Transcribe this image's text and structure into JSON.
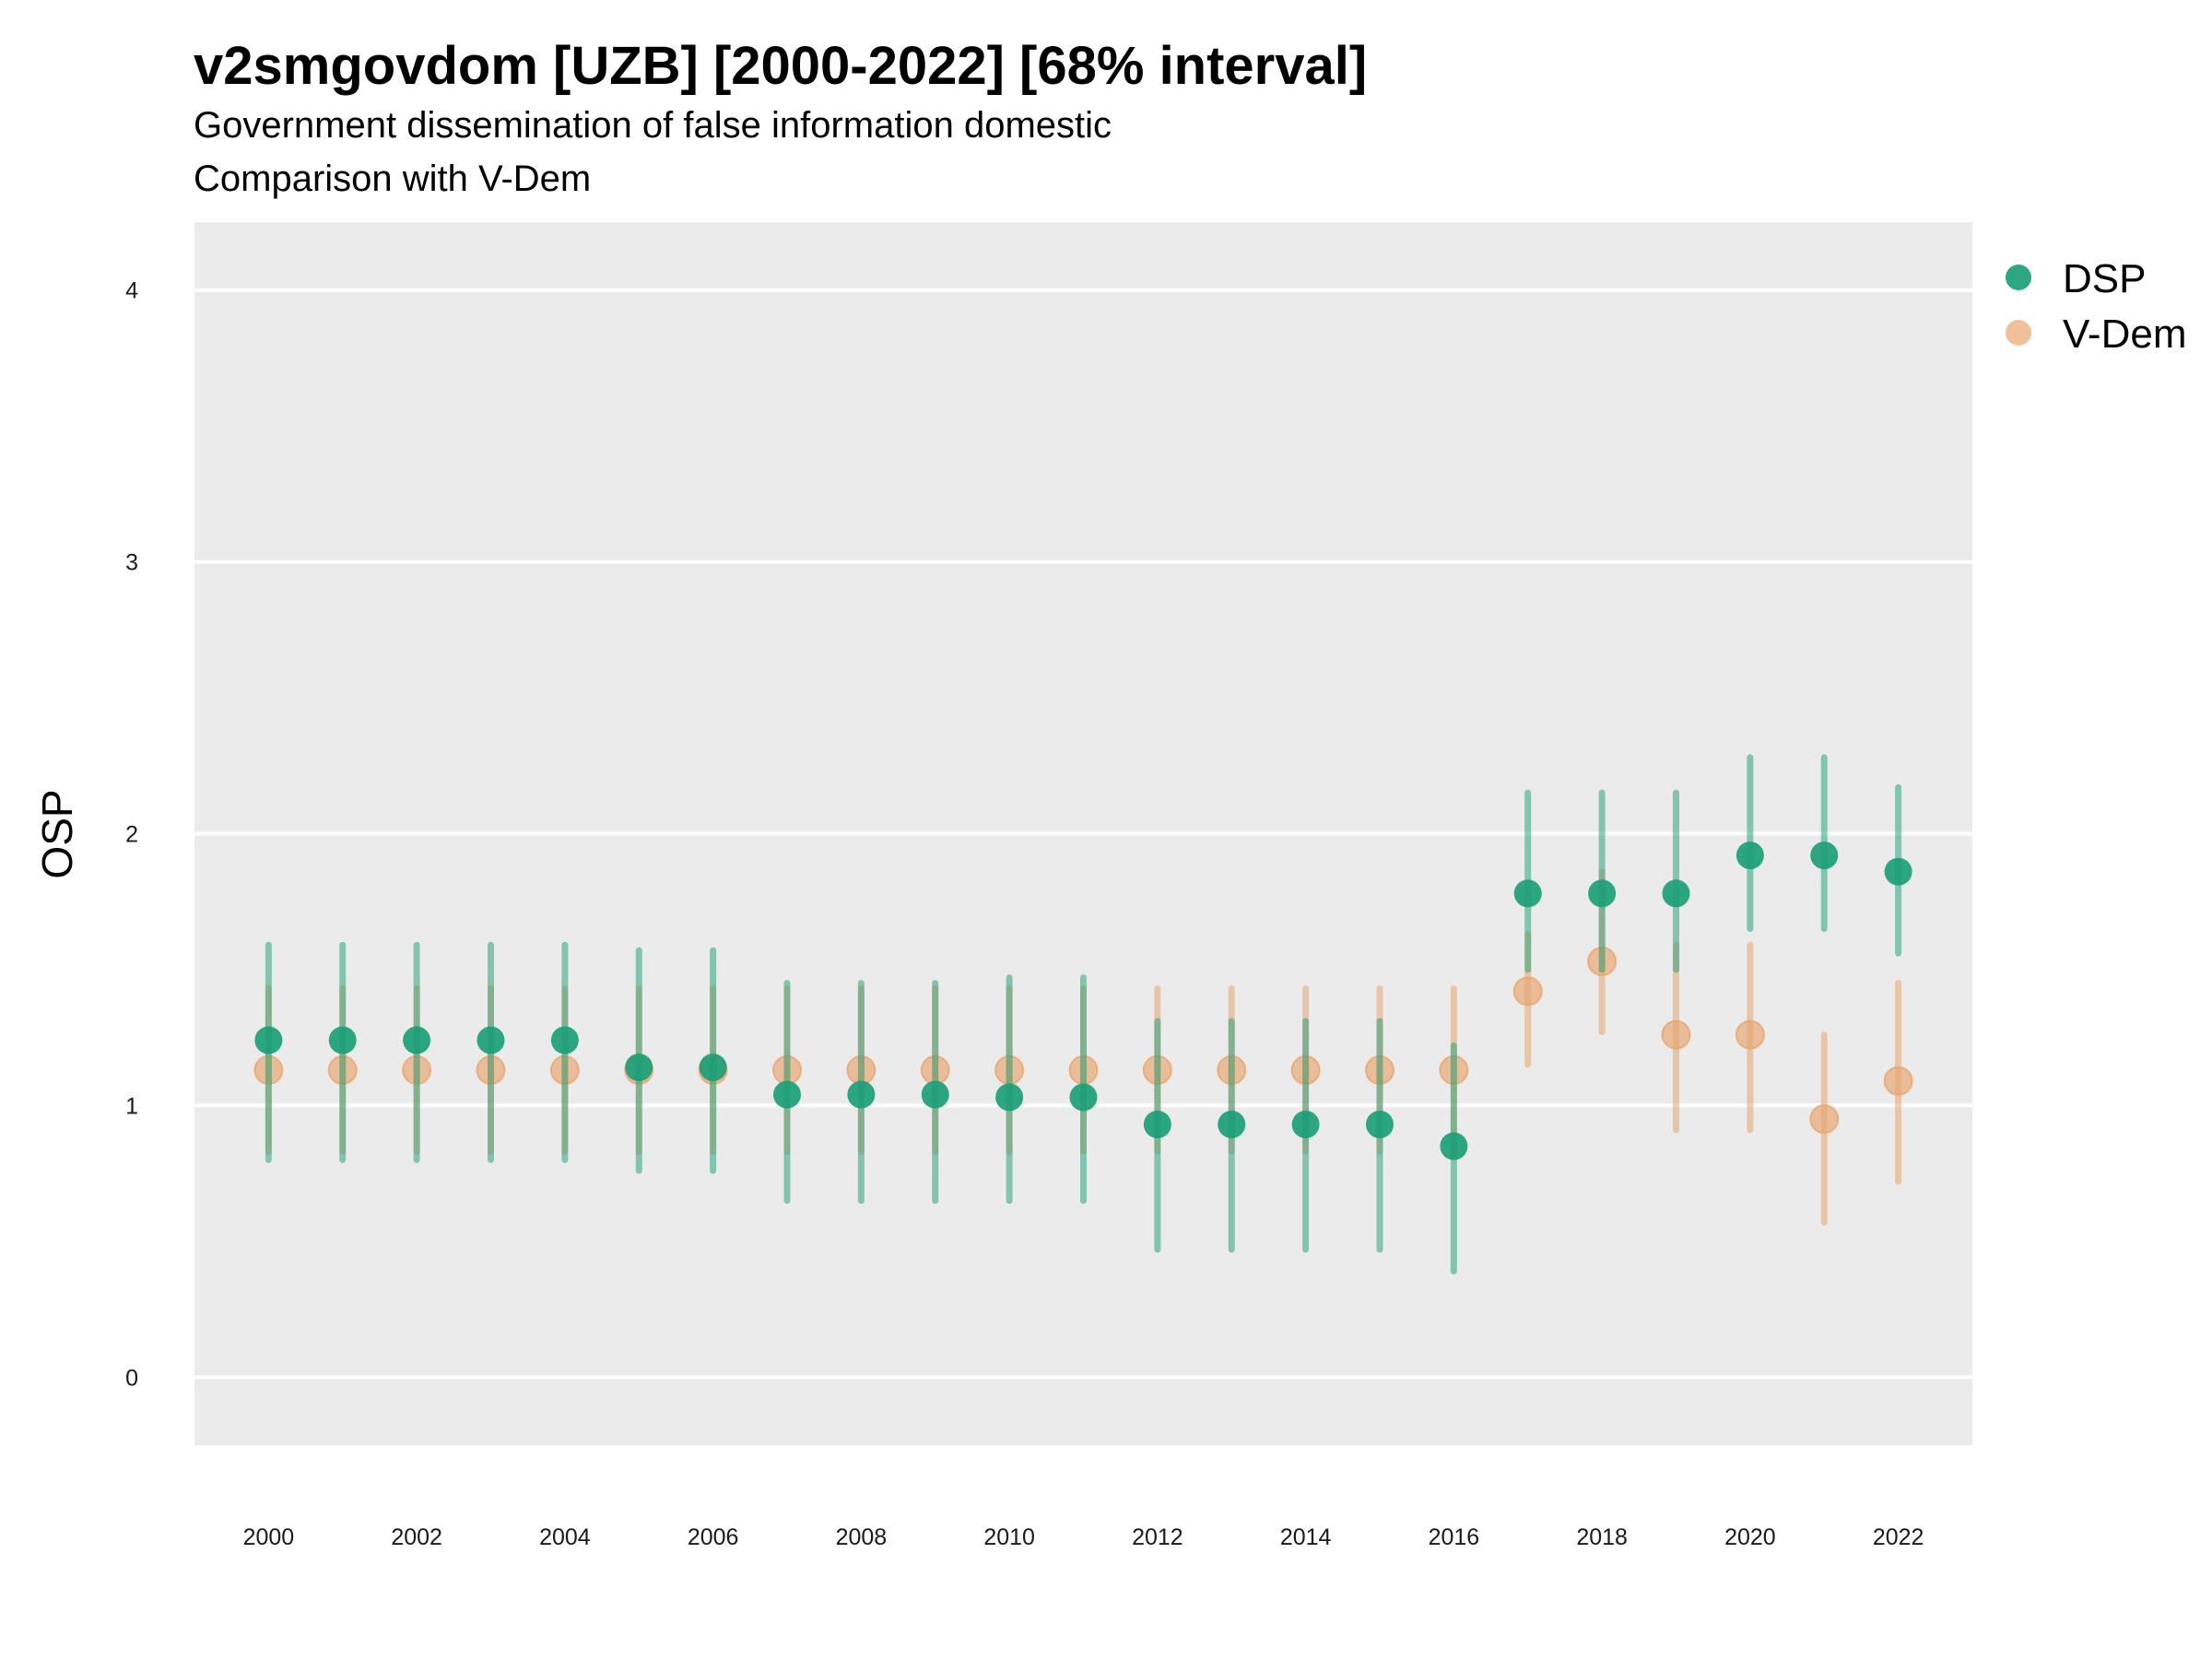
{
  "chart_data": {
    "type": "scatter",
    "title": "v2smgovdom [UZB] [2000-2022] [68% interval]",
    "subtitle": "Government dissemination of false information domestic",
    "subtitle2": "Comparison with V-Dem",
    "ylabel": "OSP",
    "xlabel": "",
    "ylim": [
      -0.25,
      4.25
    ],
    "xlim": [
      1999,
      2023
    ],
    "yticks": [
      0,
      1,
      2,
      3,
      4
    ],
    "xticks": [
      2000,
      2002,
      2004,
      2006,
      2008,
      2010,
      2012,
      2014,
      2016,
      2018,
      2020,
      2022
    ],
    "grid": "horizontal major lines",
    "legend_position": "right",
    "interval": "68%",
    "series": [
      {
        "name": "DSP",
        "color": "#1b9e77",
        "x": [
          2000,
          2001,
          2002,
          2003,
          2004,
          2005,
          2006,
          2007,
          2008,
          2009,
          2010,
          2011,
          2012,
          2013,
          2014,
          2015,
          2016,
          2017,
          2018,
          2019,
          2020,
          2021,
          2022
        ],
        "values": [
          1.24,
          1.24,
          1.24,
          1.24,
          1.24,
          1.14,
          1.14,
          1.04,
          1.04,
          1.04,
          1.03,
          1.03,
          0.93,
          0.93,
          0.93,
          0.93,
          0.85,
          1.78,
          1.78,
          1.78,
          1.92,
          1.92,
          1.86
        ],
        "lower": [
          0.8,
          0.8,
          0.8,
          0.8,
          0.8,
          0.76,
          0.76,
          0.65,
          0.65,
          0.65,
          0.65,
          0.65,
          0.47,
          0.47,
          0.47,
          0.47,
          0.39,
          1.5,
          1.5,
          1.5,
          1.65,
          1.65,
          1.56
        ],
        "upper": [
          1.59,
          1.59,
          1.59,
          1.59,
          1.59,
          1.57,
          1.57,
          1.45,
          1.45,
          1.45,
          1.47,
          1.47,
          1.31,
          1.31,
          1.31,
          1.31,
          1.22,
          2.15,
          2.15,
          2.15,
          2.28,
          2.28,
          2.17
        ]
      },
      {
        "name": "V-Dem",
        "color": "#e8a56f",
        "x": [
          2000,
          2001,
          2002,
          2003,
          2004,
          2005,
          2006,
          2007,
          2008,
          2009,
          2010,
          2011,
          2012,
          2013,
          2014,
          2015,
          2016,
          2017,
          2018,
          2019,
          2020,
          2021,
          2022
        ],
        "values": [
          1.13,
          1.13,
          1.13,
          1.13,
          1.13,
          1.13,
          1.13,
          1.13,
          1.13,
          1.13,
          1.13,
          1.13,
          1.13,
          1.13,
          1.13,
          1.13,
          1.13,
          1.42,
          1.53,
          1.26,
          1.26,
          0.95,
          1.09
        ],
        "lower": [
          0.83,
          0.83,
          0.83,
          0.83,
          0.83,
          0.83,
          0.83,
          0.83,
          0.83,
          0.83,
          0.83,
          0.83,
          0.83,
          0.83,
          0.83,
          0.83,
          0.83,
          1.15,
          1.27,
          0.91,
          0.91,
          0.57,
          0.72
        ],
        "upper": [
          1.43,
          1.43,
          1.43,
          1.43,
          1.43,
          1.43,
          1.43,
          1.43,
          1.43,
          1.43,
          1.43,
          1.43,
          1.43,
          1.43,
          1.43,
          1.43,
          1.43,
          1.63,
          1.86,
          1.59,
          1.59,
          1.26,
          1.45
        ]
      }
    ]
  }
}
